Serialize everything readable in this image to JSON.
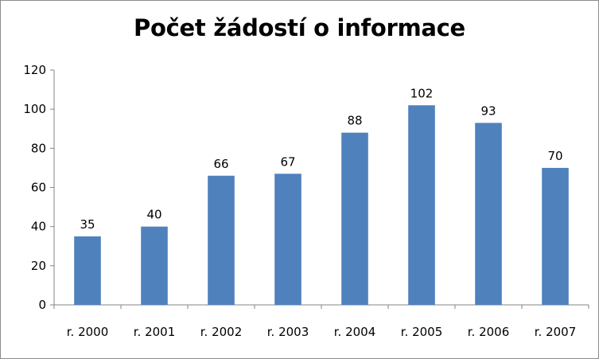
{
  "chart_data": {
    "type": "bar",
    "title": "Počet žádostí o informace",
    "categories": [
      "r. 2000",
      "r. 2001",
      "r. 2002",
      "r. 2003",
      "r. 2004",
      "r. 2005",
      "r. 2006",
      "r. 2007"
    ],
    "values": [
      35,
      40,
      66,
      67,
      88,
      102,
      93,
      70
    ],
    "ylim": [
      0,
      120
    ],
    "yticks": [
      0,
      20,
      40,
      60,
      80,
      100,
      120
    ],
    "bar_color": "#4F81BD",
    "data_labels": true,
    "grid": false,
    "legend": "none"
  }
}
